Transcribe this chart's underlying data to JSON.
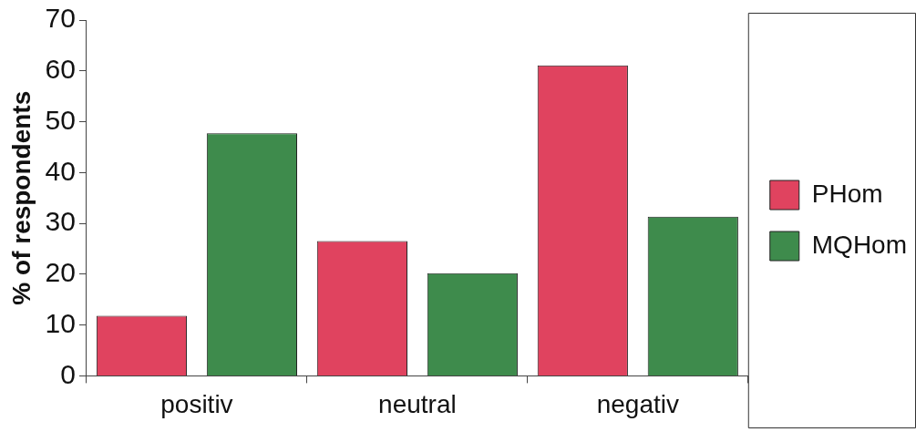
{
  "chart_data": {
    "type": "bar",
    "ylabel": "% of respondents",
    "categories": [
      "positiv",
      "neutral",
      "negativ"
    ],
    "series": [
      {
        "name": "PHom",
        "color": "#e0435f",
        "values": [
          11.8,
          26.5,
          61.1
        ]
      },
      {
        "name": "MQHom",
        "color": "#3e8b4c",
        "values": [
          47.7,
          20.2,
          31.3
        ]
      }
    ],
    "ylim": [
      0,
      70
    ],
    "yticks": [
      0,
      10,
      20,
      30,
      40,
      50,
      60,
      70
    ],
    "grid": false,
    "legend": "right"
  }
}
